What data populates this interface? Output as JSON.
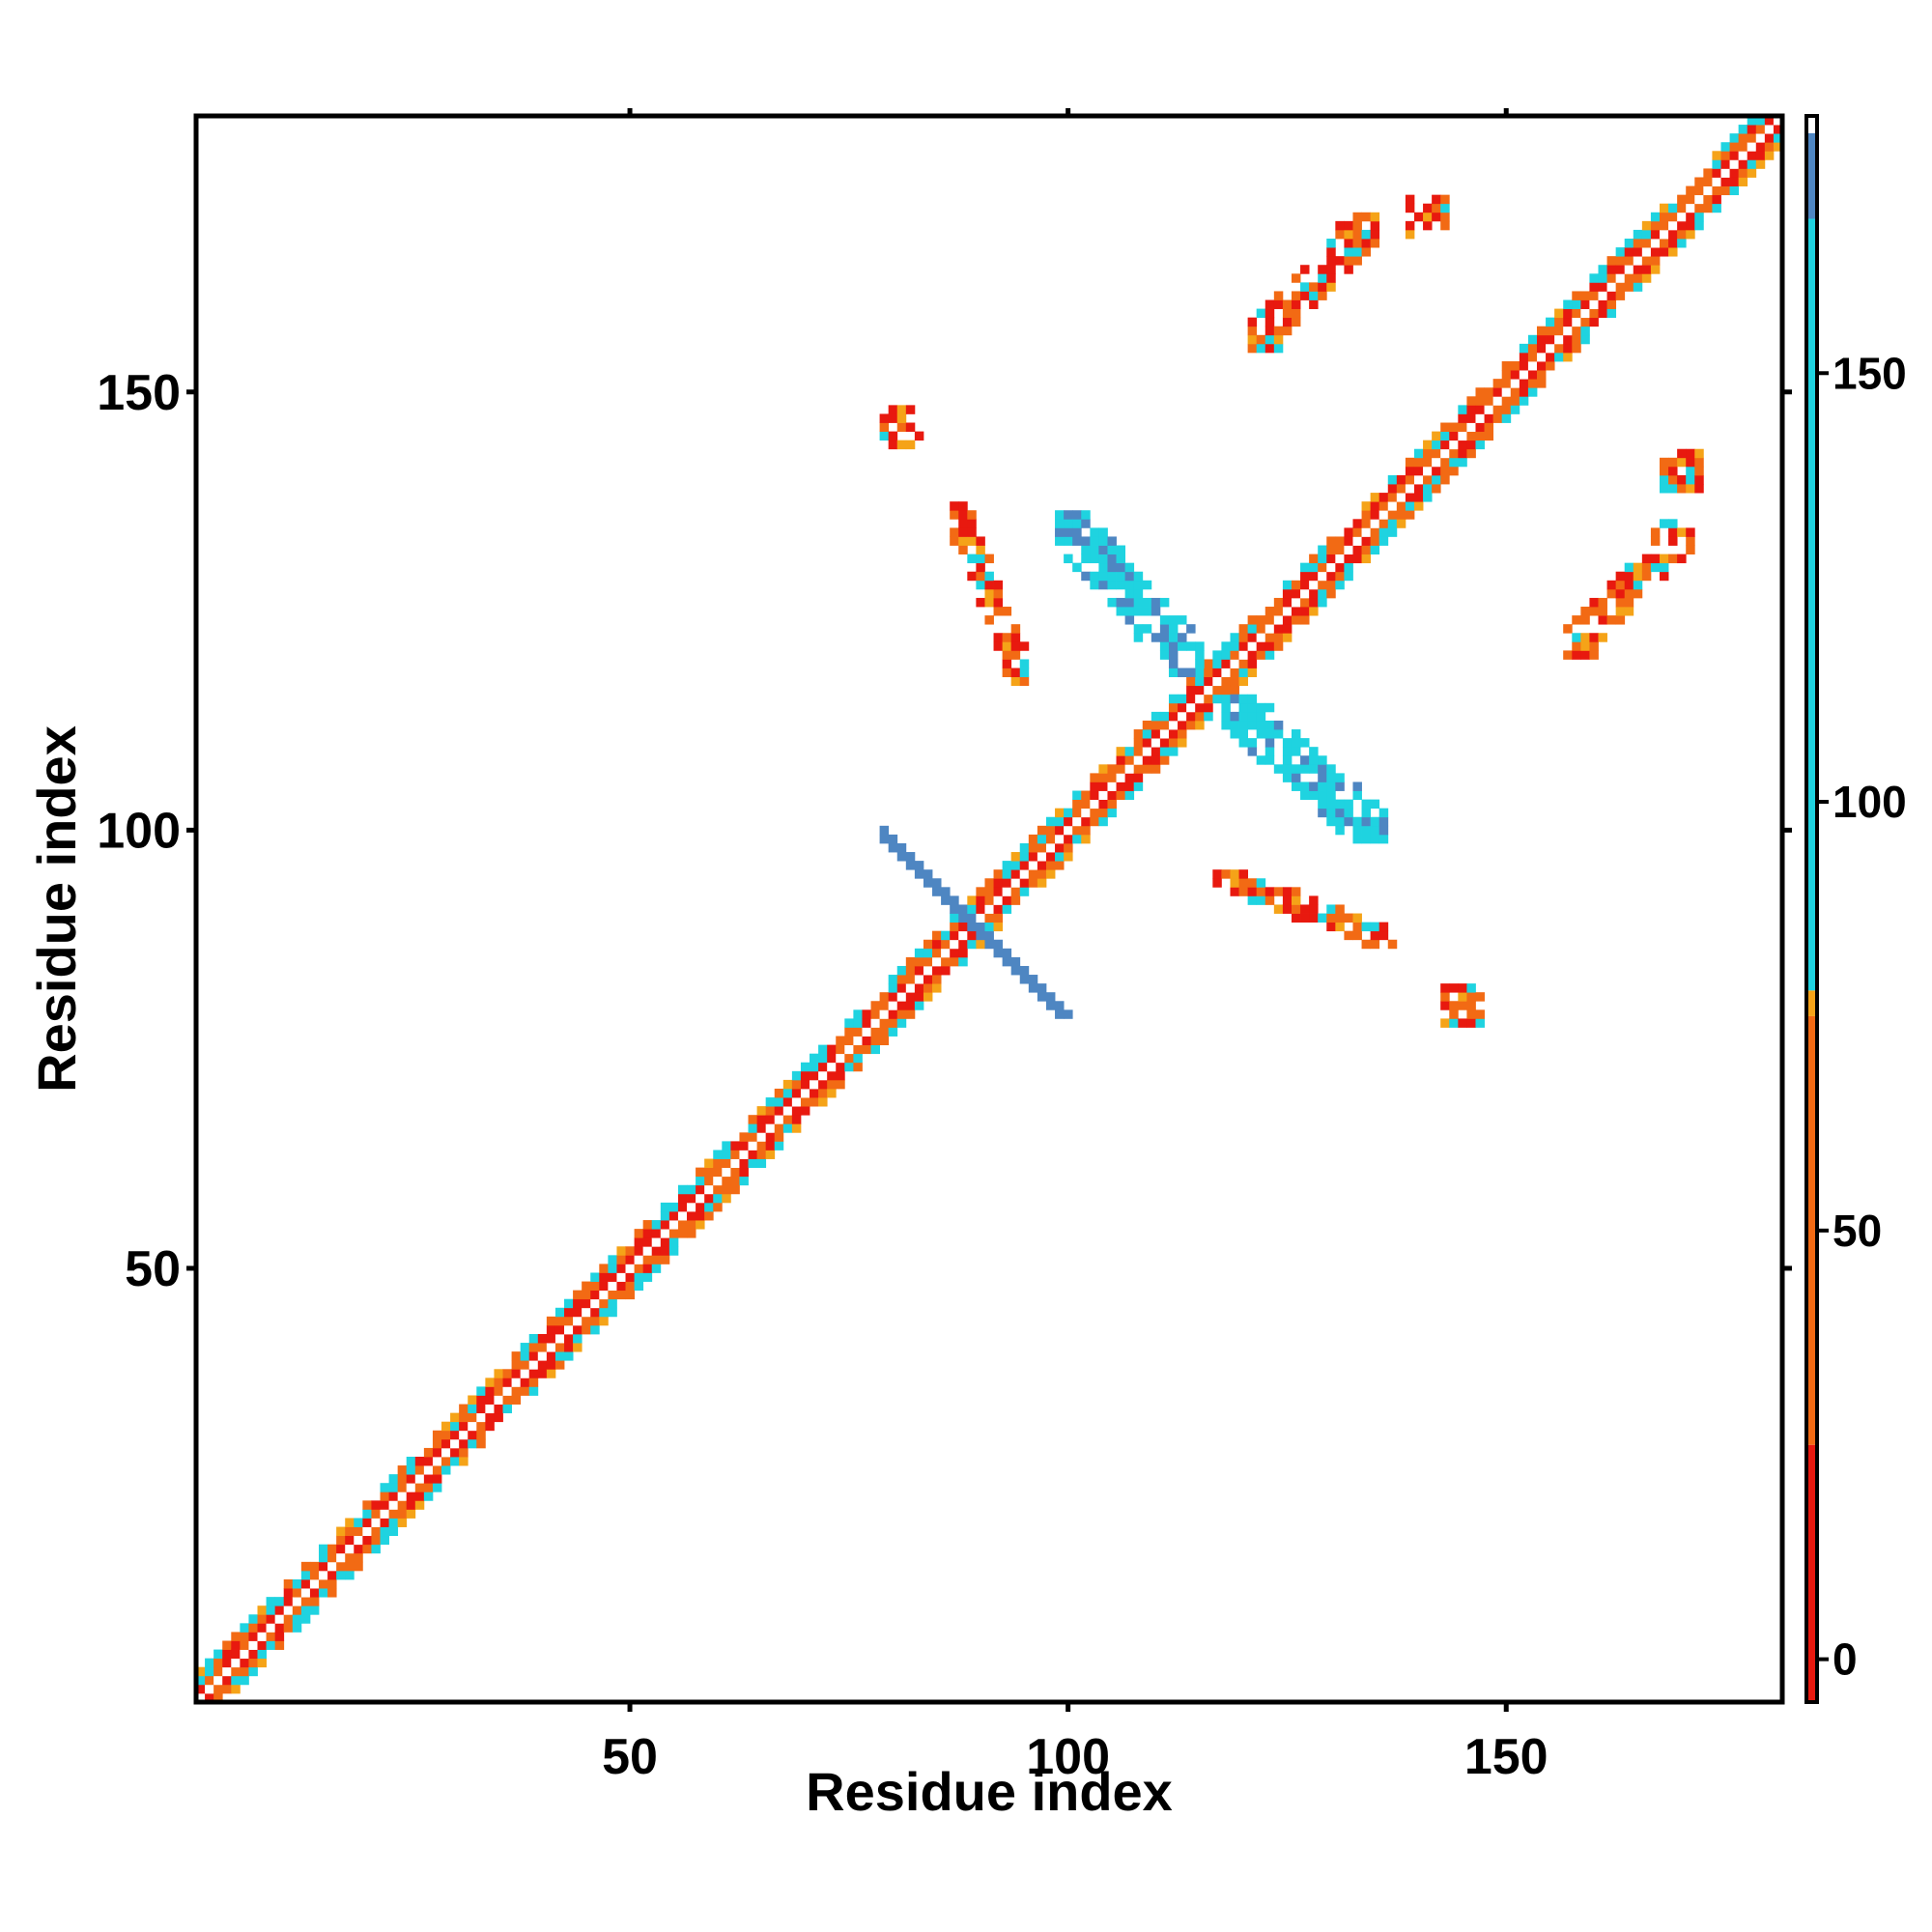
{
  "chart_data": {
    "type": "heatmap",
    "title": "",
    "xlabel": "Residue index",
    "ylabel": "Residue index",
    "xlim": [
      1,
      181
    ],
    "ylim": [
      1,
      181
    ],
    "x_ticks": [
      50,
      100,
      150
    ],
    "y_ticks": [
      50,
      100,
      150
    ],
    "colorbar": {
      "range": [
        -5,
        180
      ],
      "ticks": [
        0,
        50,
        100,
        150
      ],
      "bands": [
        {
          "from": -5,
          "to": 25,
          "color": "#e8190f"
        },
        {
          "from": 25,
          "to": 75,
          "color": "#f26a14"
        },
        {
          "from": 75,
          "to": 78,
          "color": "#f5a318"
        },
        {
          "from": 78,
          "to": 168,
          "color": "#1fd3e0"
        },
        {
          "from": 168,
          "to": 178,
          "color": "#4e86c2"
        },
        {
          "from": 178,
          "to": 180,
          "color": "#ffffff"
        }
      ]
    },
    "colors": {
      "red": "#e8190f",
      "orange": "#f26a14",
      "light_orange": "#f5a318",
      "cyan": "#1fd3e0",
      "steel_blue": "#4e86c2",
      "light_blue": "#3fb6d8"
    },
    "structure": {
      "diagonal_band": {
        "from": 1,
        "to": 181,
        "half_width": 3
      },
      "cross_motif": {
        "center": [
          89,
          89
        ],
        "arm_length": 10,
        "value": 170
      },
      "off_diagonal_patches": [
        {
          "x": [
            121,
            135
          ],
          "y": [
            155,
            170
          ],
          "orientation": "parallel",
          "value": 40
        },
        {
          "x": [
            139,
            143
          ],
          "y": [
            168,
            172
          ],
          "orientation": "block",
          "value": 45
        },
        {
          "x": [
            157,
            171
          ],
          "y": [
            120,
            135
          ],
          "orientation": "parallel",
          "value": 40
        },
        {
          "x": [
            168,
            172
          ],
          "y": [
            139,
            143
          ],
          "orientation": "block",
          "value": 45
        },
        {
          "x": [
            79,
            83
          ],
          "y": [
            144,
            148
          ],
          "orientation": "block",
          "value": 55
        },
        {
          "x": [
            143,
            147
          ],
          "y": [
            78,
            82
          ],
          "orientation": "block",
          "value": 55
        },
        {
          "x": [
            87,
            95
          ],
          "y": [
            117,
            137
          ],
          "orientation": "anti",
          "value": 50
        },
        {
          "x": [
            117,
            137
          ],
          "y": [
            87,
            95
          ],
          "orientation": "anti",
          "value": 50
        },
        {
          "x": [
            99,
            115
          ],
          "y": [
            118,
            136
          ],
          "orientation": "anti",
          "value": 120
        },
        {
          "x": [
            118,
            136
          ],
          "y": [
            99,
            115
          ],
          "orientation": "anti",
          "value": 120
        }
      ]
    }
  }
}
